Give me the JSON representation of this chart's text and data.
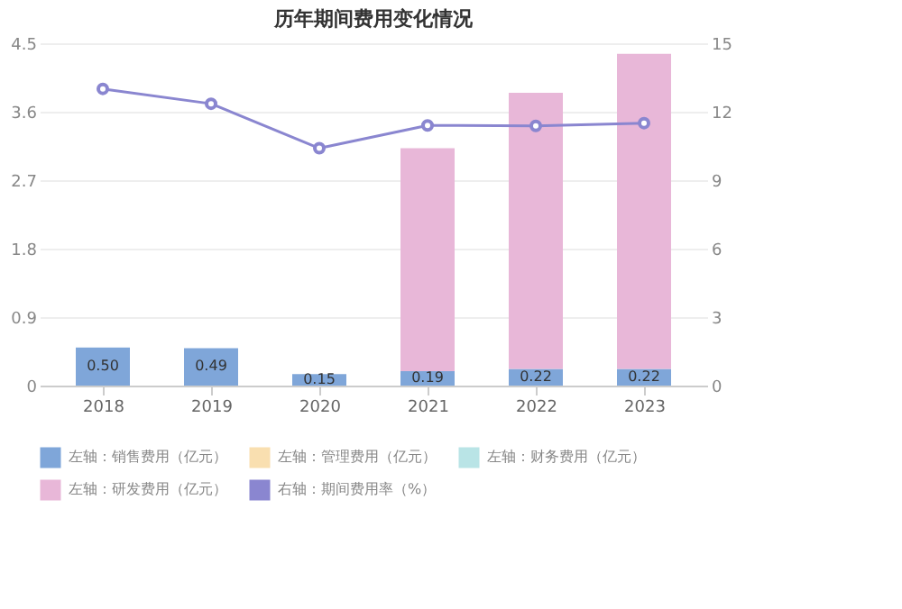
{
  "chart_data": {
    "type": "bar",
    "title": "历年期间费用变化情况",
    "stacked": true,
    "categories": [
      "2018",
      "2019",
      "2020",
      "2021",
      "2022",
      "2023"
    ],
    "series": [
      {
        "name": "左轴：销售费用（亿元）",
        "color": "#7fa6d9",
        "values": [
          0.5,
          0.49,
          0.15,
          0.19,
          0.22,
          0.22
        ],
        "value_labels": [
          "0.50",
          "0.49",
          "0.15",
          "0.19",
          "0.22",
          "0.22"
        ]
      },
      {
        "name": "左轴：管理费用（亿元）",
        "color": "#f9dfb0",
        "values": [
          null,
          null,
          null,
          null,
          null,
          null
        ]
      },
      {
        "name": "左轴：财务费用（亿元）",
        "color": "#b9e4e6",
        "values": [
          null,
          null,
          null,
          null,
          null,
          null
        ]
      },
      {
        "name": "左轴：研发费用（亿元）",
        "color": "#e8b7d8",
        "values": [
          null,
          null,
          null,
          2.93,
          3.63,
          4.14
        ]
      },
      {
        "name": "右轴：期间费用率（%）",
        "color": "#8a86d0",
        "type": "line",
        "axis": "y2",
        "marker": "circle",
        "values": [
          13.0,
          12.35,
          10.4,
          11.4,
          11.38,
          11.5
        ]
      }
    ],
    "ylim": [
      0,
      4.5
    ],
    "yticks": [
      0,
      0.9,
      1.8,
      2.7,
      3.6,
      4.5
    ],
    "y2lim": [
      0,
      15
    ],
    "y2ticks": [
      0,
      3,
      6,
      9,
      12,
      15
    ],
    "grid": "y",
    "legend": "bottom"
  }
}
